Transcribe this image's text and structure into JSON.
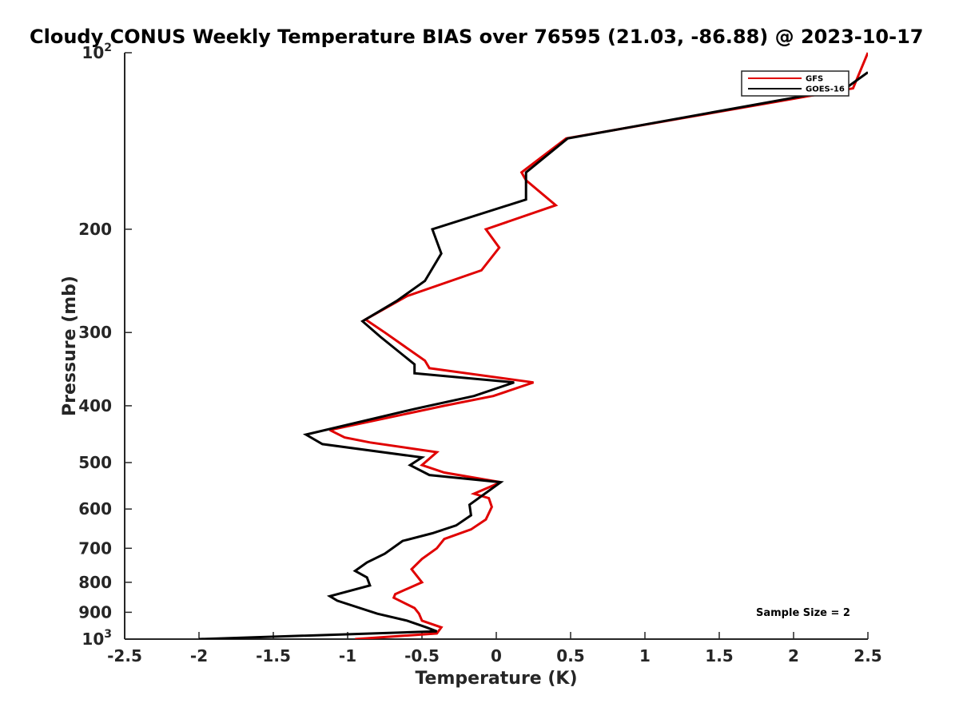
{
  "chart_data": {
    "type": "line",
    "title": "Cloudy CONUS Weekly Temperature BIAS over 76595 (21.03, -86.88) @ 2023-10-17",
    "xlabel": "Temperature (K)",
    "ylabel": "Pressure (mb)",
    "xlim": [
      -2.5,
      2.5
    ],
    "ylim": [
      100,
      1000
    ],
    "yscale": "log",
    "y_reversed": true,
    "grid": false,
    "x_ticks": [
      {
        "value": -2.5,
        "label": "-2.5"
      },
      {
        "value": -2,
        "label": "-2"
      },
      {
        "value": -1.5,
        "label": "-1.5"
      },
      {
        "value": -1,
        "label": "-1"
      },
      {
        "value": -0.5,
        "label": "-0.5"
      },
      {
        "value": 0,
        "label": "0"
      },
      {
        "value": 0.5,
        "label": "0.5"
      },
      {
        "value": 1,
        "label": "1"
      },
      {
        "value": 1.5,
        "label": "1.5"
      },
      {
        "value": 2,
        "label": "2"
      },
      {
        "value": 2.5,
        "label": "2.5"
      }
    ],
    "y_ticks": [
      {
        "value": 100,
        "label": "10",
        "sup": "2"
      },
      {
        "value": 200,
        "label": "200",
        "sup": ""
      },
      {
        "value": 300,
        "label": "300",
        "sup": ""
      },
      {
        "value": 400,
        "label": "400",
        "sup": ""
      },
      {
        "value": 500,
        "label": "500",
        "sup": ""
      },
      {
        "value": 600,
        "label": "600",
        "sup": ""
      },
      {
        "value": 700,
        "label": "700",
        "sup": ""
      },
      {
        "value": 800,
        "label": "800",
        "sup": ""
      },
      {
        "value": 900,
        "label": "900",
        "sup": ""
      },
      {
        "value": 1000,
        "label": "10",
        "sup": "3"
      }
    ],
    "legend_position": "top-right",
    "series": [
      {
        "name": "GFS",
        "color": "#e00000",
        "points": [
          {
            "x": -0.95,
            "p": 1000
          },
          {
            "x": -0.4,
            "p": 978
          },
          {
            "x": -0.37,
            "p": 955
          },
          {
            "x": -0.5,
            "p": 930
          },
          {
            "x": -0.52,
            "p": 905
          },
          {
            "x": -0.55,
            "p": 885
          },
          {
            "x": -0.69,
            "p": 850
          },
          {
            "x": -0.68,
            "p": 838
          },
          {
            "x": -0.5,
            "p": 800
          },
          {
            "x": -0.57,
            "p": 760
          },
          {
            "x": -0.5,
            "p": 730
          },
          {
            "x": -0.4,
            "p": 700
          },
          {
            "x": -0.35,
            "p": 675
          },
          {
            "x": -0.17,
            "p": 650
          },
          {
            "x": -0.07,
            "p": 625
          },
          {
            "x": -0.03,
            "p": 595
          },
          {
            "x": -0.05,
            "p": 575
          },
          {
            "x": -0.15,
            "p": 565
          },
          {
            "x": 0.03,
            "p": 540
          },
          {
            "x": -0.35,
            "p": 520
          },
          {
            "x": -0.5,
            "p": 505
          },
          {
            "x": -0.4,
            "p": 480
          },
          {
            "x": -0.85,
            "p": 462
          },
          {
            "x": -1.02,
            "p": 453
          },
          {
            "x": -1.12,
            "p": 440
          },
          {
            "x": -0.35,
            "p": 400
          },
          {
            "x": -0.02,
            "p": 385
          },
          {
            "x": 0.25,
            "p": 365
          },
          {
            "x": -0.45,
            "p": 345
          },
          {
            "x": -0.48,
            "p": 335
          },
          {
            "x": -0.75,
            "p": 300
          },
          {
            "x": -0.88,
            "p": 285
          },
          {
            "x": -0.6,
            "p": 260
          },
          {
            "x": -0.1,
            "p": 235
          },
          {
            "x": 0.02,
            "p": 215
          },
          {
            "x": -0.07,
            "p": 200
          },
          {
            "x": 0.4,
            "p": 182
          },
          {
            "x": 0.2,
            "p": 165
          },
          {
            "x": 0.17,
            "p": 160
          },
          {
            "x": 0.47,
            "p": 140
          },
          {
            "x": 2.4,
            "p": 115
          },
          {
            "x": 2.5,
            "p": 100
          }
        ]
      },
      {
        "name": "GOES-16",
        "color": "#000000",
        "points": [
          {
            "x": -2,
            "p": 1000
          },
          {
            "x": -0.4,
            "p": 970
          },
          {
            "x": -0.47,
            "p": 955
          },
          {
            "x": -0.6,
            "p": 930
          },
          {
            "x": -0.8,
            "p": 905
          },
          {
            "x": -1.07,
            "p": 860
          },
          {
            "x": -1.12,
            "p": 845
          },
          {
            "x": -0.85,
            "p": 810
          },
          {
            "x": -0.87,
            "p": 785
          },
          {
            "x": -0.95,
            "p": 765
          },
          {
            "x": -0.87,
            "p": 740
          },
          {
            "x": -0.75,
            "p": 715
          },
          {
            "x": -0.63,
            "p": 680
          },
          {
            "x": -0.43,
            "p": 660
          },
          {
            "x": -0.27,
            "p": 640
          },
          {
            "x": -0.17,
            "p": 615
          },
          {
            "x": -0.18,
            "p": 590
          },
          {
            "x": 0.03,
            "p": 540
          },
          {
            "x": -0.45,
            "p": 525
          },
          {
            "x": -0.58,
            "p": 505
          },
          {
            "x": -0.5,
            "p": 490
          },
          {
            "x": -1.17,
            "p": 465
          },
          {
            "x": -1.28,
            "p": 448
          },
          {
            "x": -0.55,
            "p": 405
          },
          {
            "x": -0.15,
            "p": 385
          },
          {
            "x": 0.12,
            "p": 365
          },
          {
            "x": -0.55,
            "p": 352
          },
          {
            "x": -0.55,
            "p": 340
          },
          {
            "x": -0.78,
            "p": 305
          },
          {
            "x": -0.9,
            "p": 287
          },
          {
            "x": -0.67,
            "p": 265
          },
          {
            "x": -0.48,
            "p": 245
          },
          {
            "x": -0.37,
            "p": 220
          },
          {
            "x": -0.43,
            "p": 200
          },
          {
            "x": 0.2,
            "p": 178
          },
          {
            "x": 0.2,
            "p": 160
          },
          {
            "x": 0.48,
            "p": 140
          },
          {
            "x": 2.35,
            "p": 115
          },
          {
            "x": 2.5,
            "p": 108
          }
        ]
      }
    ],
    "annotation": "Sample Size = 2"
  }
}
